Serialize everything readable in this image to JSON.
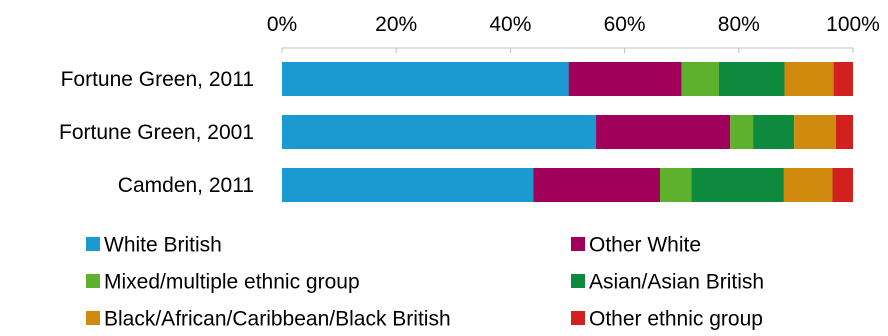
{
  "chart_data": {
    "type": "bar",
    "orientation": "horizontal",
    "stacked": true,
    "percent": true,
    "title": "",
    "xlabel": "",
    "ylabel": "",
    "xlim": [
      0,
      100
    ],
    "x_ticks": [
      "0%",
      "20%",
      "40%",
      "60%",
      "80%",
      "100%"
    ],
    "x_axis_position": "top",
    "grid": false,
    "legend_position": "bottom",
    "categories": [
      "Fortune Green, 2011",
      "Fortune Green, 2001",
      "Camden, 2011"
    ],
    "series": [
      {
        "name": "White British",
        "color": "#1B9AD1",
        "values": [
          50.2,
          55.0,
          44.0
        ]
      },
      {
        "name": "Other White",
        "color": "#A1005A",
        "values": [
          19.8,
          23.5,
          22.2
        ]
      },
      {
        "name": "Mixed/multiple ethnic group",
        "color": "#5DB12D",
        "values": [
          6.5,
          4.0,
          5.5
        ]
      },
      {
        "name": "Asian/Asian British",
        "color": "#0E8A3E",
        "values": [
          11.5,
          7.2,
          16.2
        ]
      },
      {
        "name": "Black/African/Caribbean/Black British",
        "color": "#D08A0E",
        "values": [
          8.6,
          7.3,
          8.5
        ]
      },
      {
        "name": "Other ethnic group",
        "color": "#D2201E",
        "values": [
          3.4,
          3.0,
          3.6
        ]
      }
    ]
  }
}
